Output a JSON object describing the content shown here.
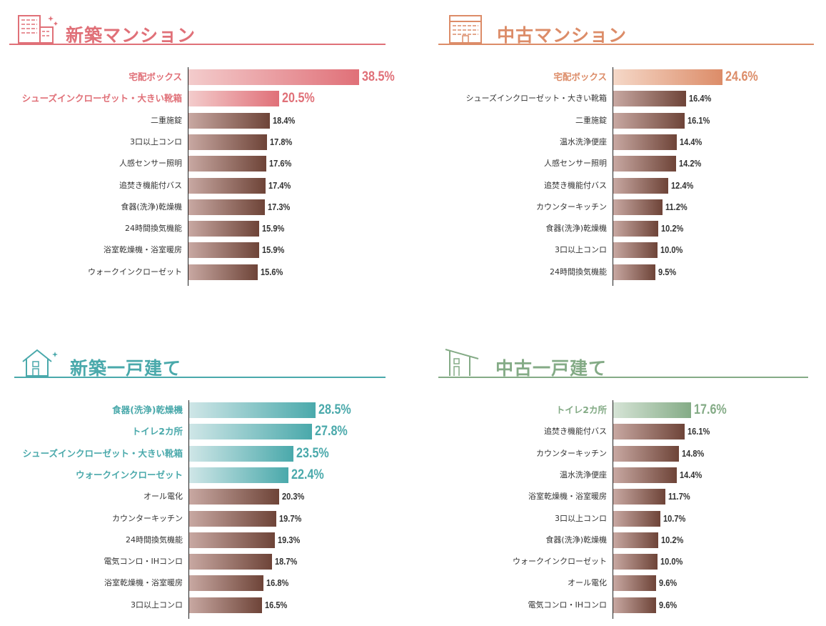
{
  "chart_data": [
    {
      "type": "bar",
      "orientation": "horizontal",
      "title": "新築マンション",
      "icon": "apartment-building-sparkle-icon",
      "accent": "#e07078",
      "highlight_start": "#f3cccc",
      "categories": [
        "宅配ボックス",
        "シューズインクローゼット・大きい靴箱",
        "二重施錠",
        "3口以上コンロ",
        "人感センサー照明",
        "追焚き機能付バス",
        "食器(洗浄)乾燥機",
        "24時間換気機能",
        "浴室乾燥機・浴室暖房",
        "ウォークインクローゼット"
      ],
      "values": [
        38.5,
        20.5,
        18.4,
        17.8,
        17.6,
        17.4,
        17.3,
        15.9,
        15.9,
        15.6
      ],
      "labels": [
        "38.5%",
        "20.5%",
        "18.4%",
        "17.8%",
        "17.6%",
        "17.4%",
        "17.3%",
        "15.9%",
        "15.9%",
        "15.6%"
      ],
      "highlighted": 2
    },
    {
      "type": "bar",
      "orientation": "horizontal",
      "title": "中古マンション",
      "icon": "apartment-building-icon",
      "accent": "#dc8c68",
      "highlight_start": "#f5d8c8",
      "categories": [
        "宅配ボックス",
        "シューズインクローゼット・大きい靴箱",
        "二重施錠",
        "温水洗浄便座",
        "人感センサー照明",
        "追焚き機能付バス",
        "カウンターキッチン",
        "食器(洗浄)乾燥機",
        "3口以上コンロ",
        "24時間換気機能"
      ],
      "values": [
        24.6,
        16.4,
        16.1,
        14.4,
        14.2,
        12.4,
        11.2,
        10.2,
        10.0,
        9.5
      ],
      "labels": [
        "24.6%",
        "16.4%",
        "16.1%",
        "14.4%",
        "14.2%",
        "12.4%",
        "11.2%",
        "10.2%",
        "10.0%",
        "9.5%"
      ],
      "highlighted": 1
    },
    {
      "type": "bar",
      "orientation": "horizontal",
      "title": "新築一戸建て",
      "icon": "house-sparkle-icon",
      "accent": "#4aa9ab",
      "highlight_start": "#cfe6e7",
      "categories": [
        "食器(洗浄)乾燥機",
        "トイレ2カ所",
        "シューズインクローゼット・大きい靴箱",
        "ウォークインクローゼット",
        "オール電化",
        "カウンターキッチン",
        "24時間換気機能",
        "電気コンロ・IHコンロ",
        "浴室乾燥機・浴室暖房",
        "3口以上コンロ"
      ],
      "values": [
        28.5,
        27.8,
        23.5,
        22.4,
        20.3,
        19.7,
        19.3,
        18.7,
        16.8,
        16.5
      ],
      "labels": [
        "28.5%",
        "27.8%",
        "23.5%",
        "22.4%",
        "20.3%",
        "19.7%",
        "19.3%",
        "18.7%",
        "16.8%",
        "16.5%"
      ],
      "highlighted": 4
    },
    {
      "type": "bar",
      "orientation": "horizontal",
      "title": "中古一戸建て",
      "icon": "house-icon",
      "accent": "#84ab86",
      "highlight_start": "#d6e4d6",
      "categories": [
        "トイレ2カ所",
        "追焚き機能付バス",
        "カウンターキッチン",
        "温水洗浄便座",
        "浴室乾燥機・浴室暖房",
        "3口以上コンロ",
        "食器(洗浄)乾燥機",
        "ウォークインクローゼット",
        "オール電化",
        "電気コンロ・IHコンロ"
      ],
      "values": [
        17.6,
        16.1,
        14.8,
        14.4,
        11.7,
        10.7,
        10.2,
        10.0,
        9.6,
        9.6
      ],
      "labels": [
        "17.6%",
        "16.1%",
        "14.8%",
        "14.4%",
        "11.7%",
        "10.7%",
        "10.2%",
        "10.0%",
        "9.6%",
        "9.6%"
      ],
      "highlighted": 1
    }
  ],
  "colors": {
    "normal_bar_start": "#c8a8a2",
    "normal_bar_end": "#6e4438"
  }
}
